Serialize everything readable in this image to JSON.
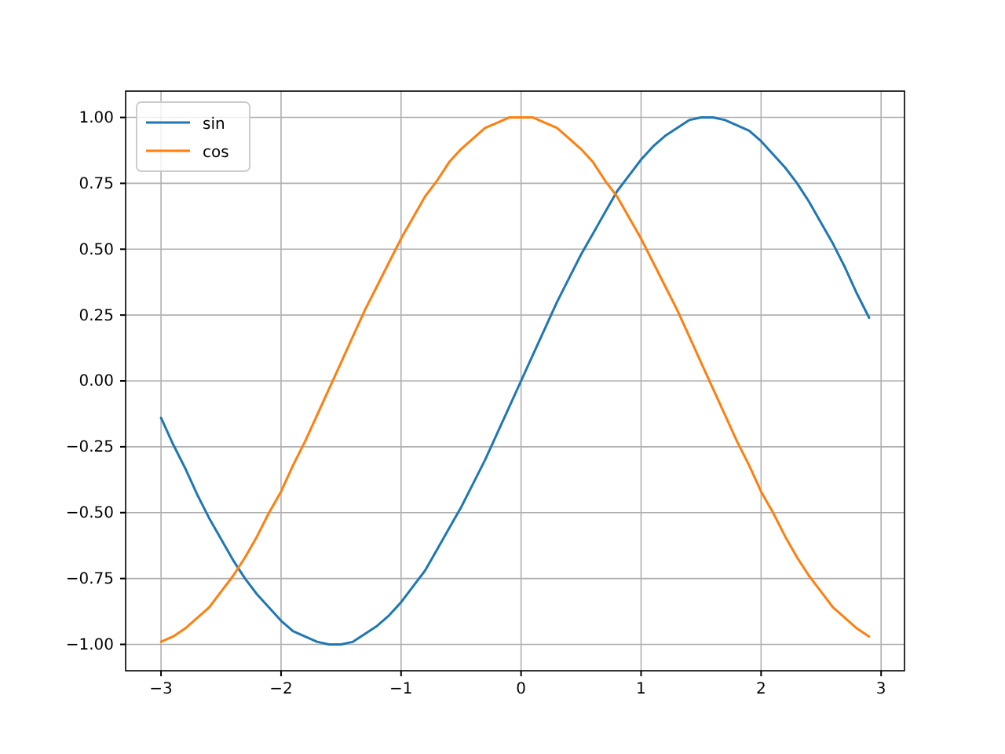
{
  "chart_data": {
    "type": "line",
    "x": [
      -3.0,
      -2.9,
      -2.8,
      -2.7,
      -2.6,
      -2.5,
      -2.4,
      -2.3,
      -2.2,
      -2.1,
      -2.0,
      -1.9,
      -1.8,
      -1.7,
      -1.6,
      -1.5,
      -1.4,
      -1.3,
      -1.2,
      -1.1,
      -1.0,
      -0.9,
      -0.8,
      -0.7,
      -0.6,
      -0.5,
      -0.4,
      -0.3,
      -0.2,
      -0.1,
      0.0,
      0.1,
      0.2,
      0.3,
      0.4,
      0.5,
      0.6,
      0.7,
      0.8,
      0.9,
      1.0,
      1.1,
      1.2,
      1.3,
      1.4,
      1.5,
      1.6,
      1.7,
      1.8,
      1.9,
      2.0,
      2.1,
      2.2,
      2.3,
      2.4,
      2.5,
      2.6,
      2.7,
      2.8,
      2.9
    ],
    "series": [
      {
        "name": "sin",
        "color": "#1f77b4",
        "values": [
          -0.14,
          -0.24,
          -0.33,
          -0.43,
          -0.52,
          -0.6,
          -0.68,
          -0.75,
          -0.81,
          -0.86,
          -0.91,
          -0.95,
          -0.97,
          -0.99,
          -1.0,
          -1.0,
          -0.99,
          -0.96,
          -0.93,
          -0.89,
          -0.84,
          -0.78,
          -0.72,
          -0.64,
          -0.56,
          -0.48,
          -0.39,
          -0.3,
          -0.2,
          -0.1,
          0.0,
          0.1,
          0.2,
          0.3,
          0.39,
          0.48,
          0.56,
          0.64,
          0.72,
          0.78,
          0.84,
          0.89,
          0.93,
          0.96,
          0.99,
          1.0,
          1.0,
          0.99,
          0.97,
          0.95,
          0.91,
          0.86,
          0.81,
          0.75,
          0.68,
          0.6,
          0.52,
          0.43,
          0.33,
          0.24
        ]
      },
      {
        "name": "cos",
        "color": "#ff7f0e",
        "values": [
          -0.99,
          -0.97,
          -0.94,
          -0.9,
          -0.86,
          -0.8,
          -0.74,
          -0.67,
          -0.59,
          -0.5,
          -0.42,
          -0.32,
          -0.23,
          -0.13,
          -0.03,
          0.07,
          0.17,
          0.27,
          0.36,
          0.45,
          0.54,
          0.62,
          0.7,
          0.76,
          0.83,
          0.88,
          0.92,
          0.96,
          0.98,
          1.0,
          1.0,
          1.0,
          0.98,
          0.96,
          0.92,
          0.88,
          0.83,
          0.76,
          0.7,
          0.62,
          0.54,
          0.45,
          0.36,
          0.27,
          0.17,
          0.07,
          -0.03,
          -0.13,
          -0.23,
          -0.32,
          -0.42,
          -0.5,
          -0.59,
          -0.67,
          -0.74,
          -0.8,
          -0.86,
          -0.9,
          -0.94,
          -0.97
        ]
      }
    ],
    "xlim": [
      -3.295,
      3.195
    ],
    "xticks": [
      {
        "value": -3,
        "label": "−3"
      },
      {
        "value": -2,
        "label": "−2"
      },
      {
        "value": -1,
        "label": "−1"
      },
      0,
      1,
      2,
      3
    ],
    "ylim": [
      -1.1,
      1.1
    ],
    "yticks": [
      {
        "value": -1,
        "label": "−1.00"
      },
      {
        "value": -0.75,
        "label": "−0.75"
      },
      {
        "value": -0.5,
        "label": "−0.50"
      },
      {
        "value": -0.25,
        "label": "−0.25"
      },
      {
        "value": 0,
        "label": "0.00"
      },
      {
        "value": 0.25,
        "label": "0.25"
      },
      {
        "value": 0.5,
        "label": "0.50"
      },
      {
        "value": 0.75,
        "label": "0.75"
      },
      {
        "value": 1,
        "label": "1.00"
      }
    ],
    "grid": true,
    "legend": "top left"
  }
}
